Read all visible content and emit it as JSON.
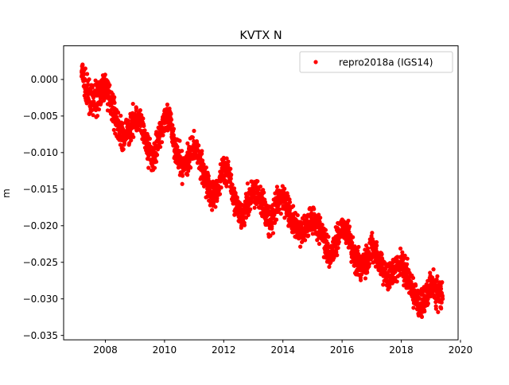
{
  "chart_data": {
    "type": "scatter",
    "title": "KVTX N",
    "xlabel": "",
    "ylabel": "m",
    "xlim": [
      2006.59,
      2019.92
    ],
    "ylim": [
      -0.0356,
      0.0046
    ],
    "xticks": [
      2008,
      2010,
      2012,
      2014,
      2016,
      2018,
      2020
    ],
    "xtick_labels": [
      "2008",
      "2010",
      "2012",
      "2014",
      "2016",
      "2018",
      "2020"
    ],
    "yticks": [
      0.0,
      -0.005,
      -0.01,
      -0.015,
      -0.02,
      -0.025,
      -0.03,
      -0.035
    ],
    "ytick_labels": [
      "0.000",
      "−0.005",
      "−0.010",
      "−0.015",
      "−0.020",
      "−0.025",
      "−0.030",
      "−0.035"
    ],
    "grid": false,
    "legend_position": "top-right",
    "series": [
      {
        "name": "repro2018a (IGS14)",
        "color": "#ff0000",
        "marker": "dot",
        "x_start": 2007.2,
        "x_step": 0.2,
        "spread": 0.0022,
        "values": [
          0.001,
          -0.002,
          -0.003,
          -0.002,
          -0.001,
          -0.003,
          -0.006,
          -0.008,
          -0.007,
          -0.005,
          -0.006,
          -0.009,
          -0.011,
          -0.008,
          -0.005,
          -0.006,
          -0.01,
          -0.012,
          -0.011,
          -0.009,
          -0.011,
          -0.014,
          -0.016,
          -0.015,
          -0.012,
          -0.013,
          -0.017,
          -0.019,
          -0.017,
          -0.015,
          -0.016,
          -0.018,
          -0.02,
          -0.017,
          -0.016,
          -0.018,
          -0.02,
          -0.021,
          -0.02,
          -0.019,
          -0.02,
          -0.022,
          -0.024,
          -0.022,
          -0.02,
          -0.021,
          -0.024,
          -0.026,
          -0.025,
          -0.023,
          -0.024,
          -0.026,
          -0.027,
          -0.026,
          -0.025,
          -0.027,
          -0.029,
          -0.031,
          -0.03,
          -0.028,
          -0.029,
          -0.03
        ]
      }
    ]
  }
}
